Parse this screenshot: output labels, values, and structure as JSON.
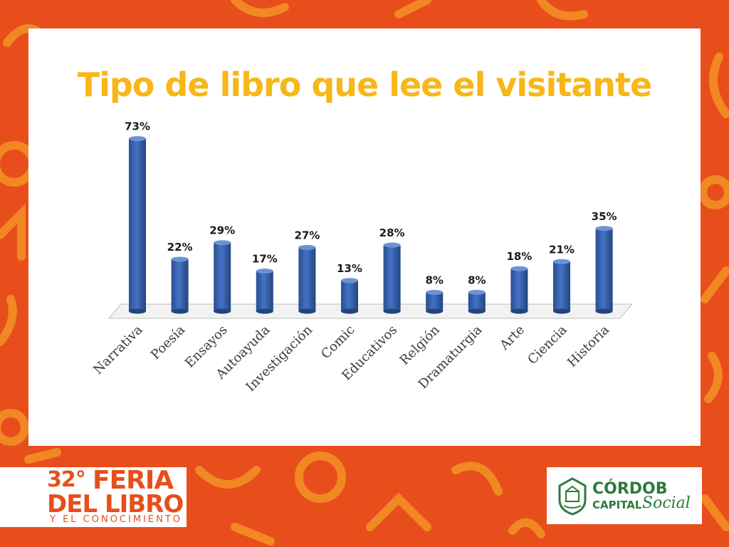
{
  "title": "Tipo de libro que lee el visitante",
  "chart_data": {
    "type": "bar",
    "categories": [
      "Narrativa",
      "Poesía",
      "Ensayos",
      "Autoayuda",
      "Investigación",
      "Comic",
      "Educativos",
      "Relgión",
      "Dramaturgia",
      "Arte",
      "Ciencia",
      "Historia"
    ],
    "values": [
      73,
      22,
      29,
      17,
      27,
      13,
      28,
      8,
      8,
      18,
      21,
      35
    ],
    "value_labels": [
      "73%",
      "22%",
      "29%",
      "17%",
      "27%",
      "13%",
      "28%",
      "8%",
      "8%",
      "18%",
      "21%",
      "35%"
    ],
    "title": "Tipo de libro que lee el visitante",
    "xlabel": "",
    "ylabel": "",
    "ylim": [
      0,
      75
    ],
    "grid": false,
    "bar_color": "#4472c4"
  },
  "footer": {
    "feria_edition": "32°",
    "feria_line1": "FERIA",
    "feria_line2": "DEL LIBRO",
    "feria_line3": "Y EL CONOCIMIENTO",
    "cordoba_line1": "CÓRDOB",
    "cordoba_line2": "CAPITAL",
    "cordoba_line3": "Social"
  },
  "colors": {
    "background": "#e84e1b",
    "title": "#f7b718",
    "logo_green": "#2d7a3e"
  }
}
